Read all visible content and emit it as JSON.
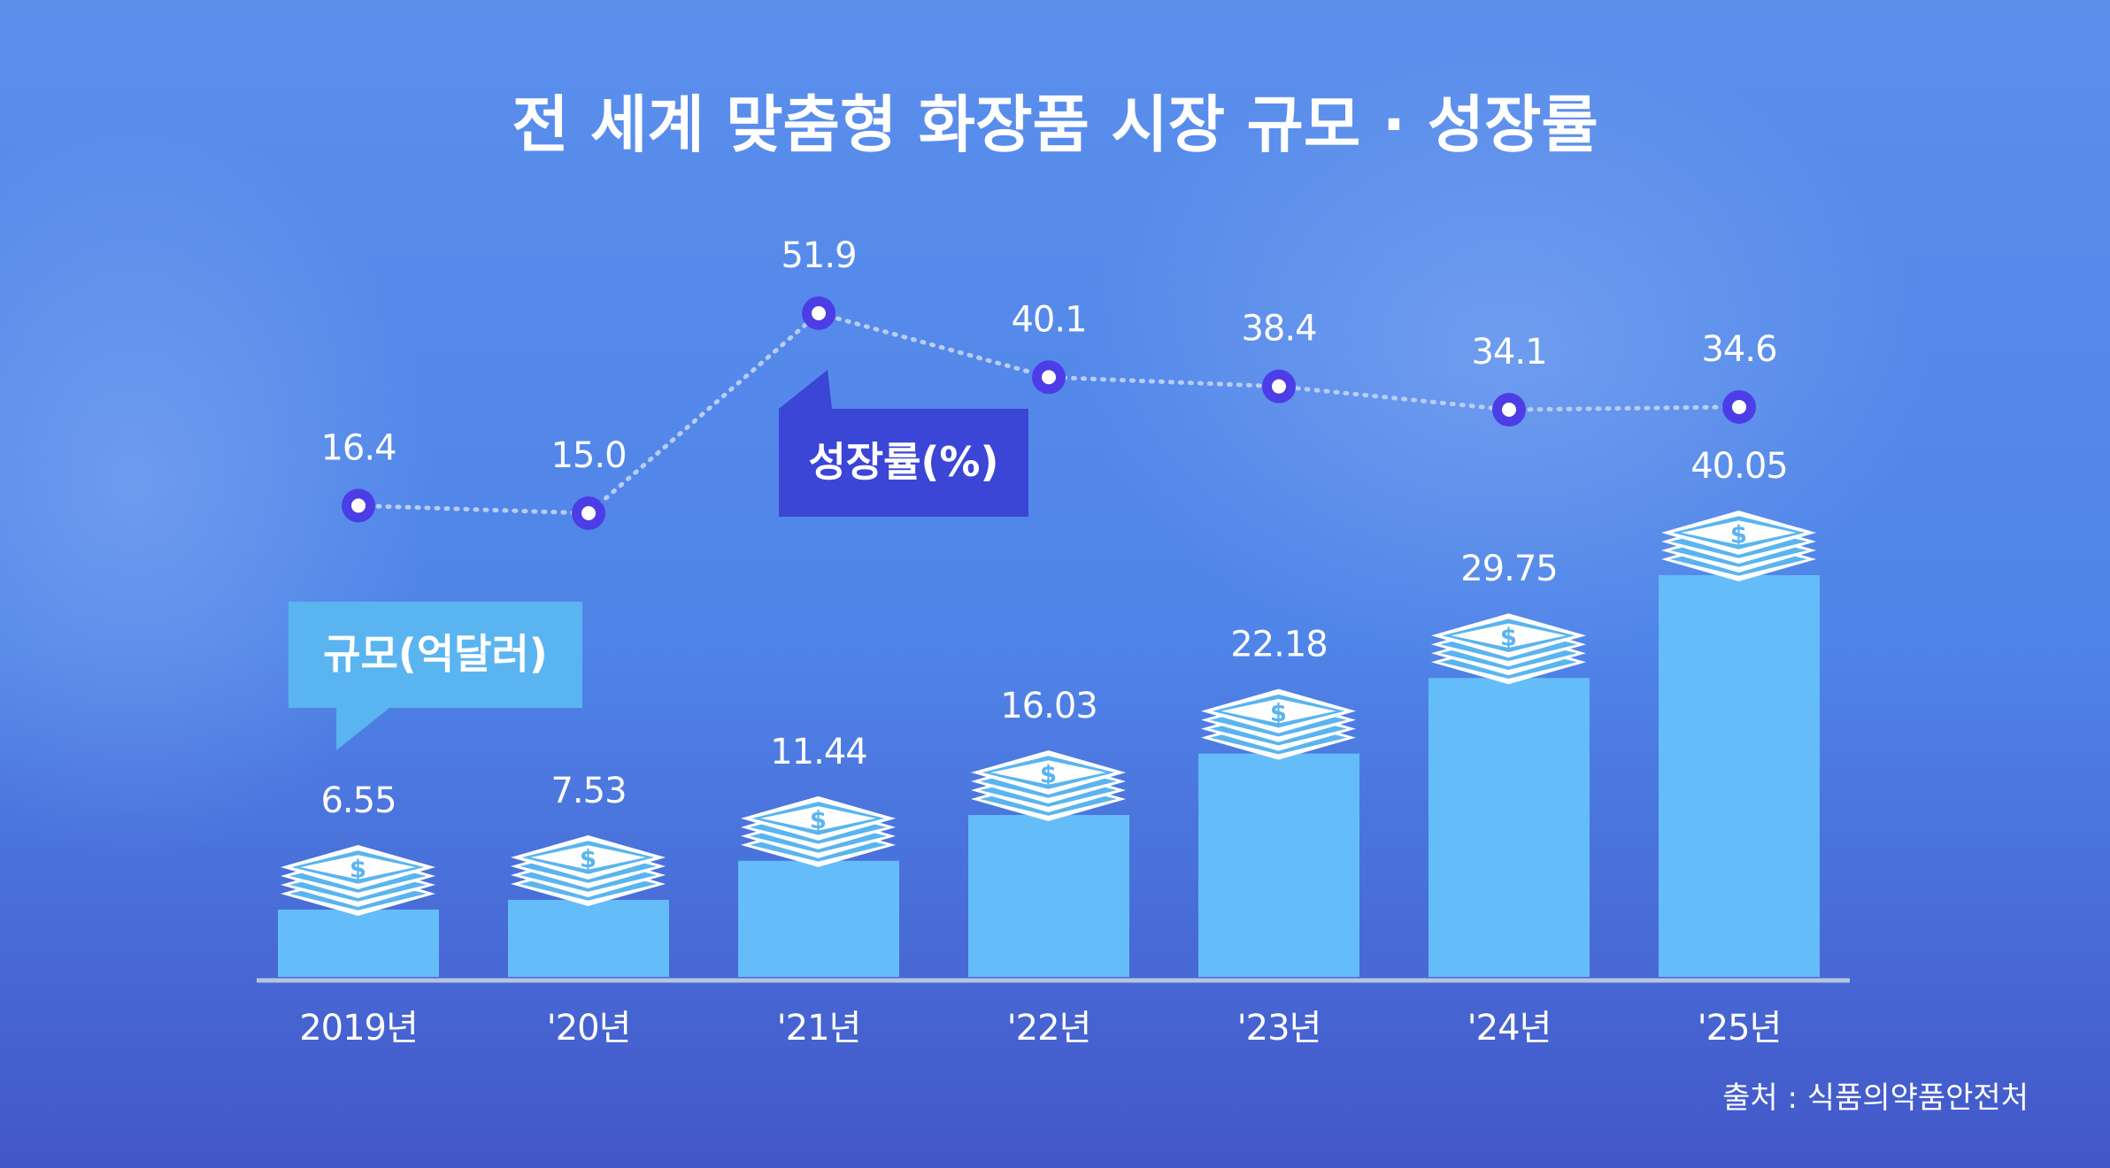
{
  "title": "전 세계 맞춤형 화장품 시장 규모 · 성장률",
  "source": "출처 : 식품의약품안전처",
  "colors": {
    "bar": "#64bdf8",
    "line_point": "#4d3de6",
    "rate_tag": "#3b45d6",
    "size_tag": "#5ab4ef"
  },
  "icons": {
    "bar_top": "money-stack-icon"
  },
  "chart_data": {
    "type": "bar+line",
    "categories": [
      "2019년",
      "'20년",
      "'21년",
      "'22년",
      "'23년",
      "'24년",
      "'25년"
    ],
    "series": [
      {
        "name": "규모(억달러)",
        "type": "bar",
        "values": [
          6.55,
          7.53,
          11.44,
          16.03,
          22.18,
          29.75,
          40.05
        ],
        "labels": [
          "6.55",
          "7.53",
          "11.44",
          "16.03",
          "22.18",
          "29.75",
          "40.05"
        ]
      },
      {
        "name": "성장률(%)",
        "type": "line",
        "values": [
          16.4,
          15.0,
          51.9,
          40.1,
          38.4,
          34.1,
          34.6
        ],
        "labels": [
          "16.4",
          "15.0",
          "51.9",
          "40.1",
          "38.4",
          "34.1",
          "34.6"
        ]
      }
    ],
    "title": "전 세계 맞춤형 화장품 시장 규모 · 성장률",
    "grid": false,
    "legend": "none"
  }
}
